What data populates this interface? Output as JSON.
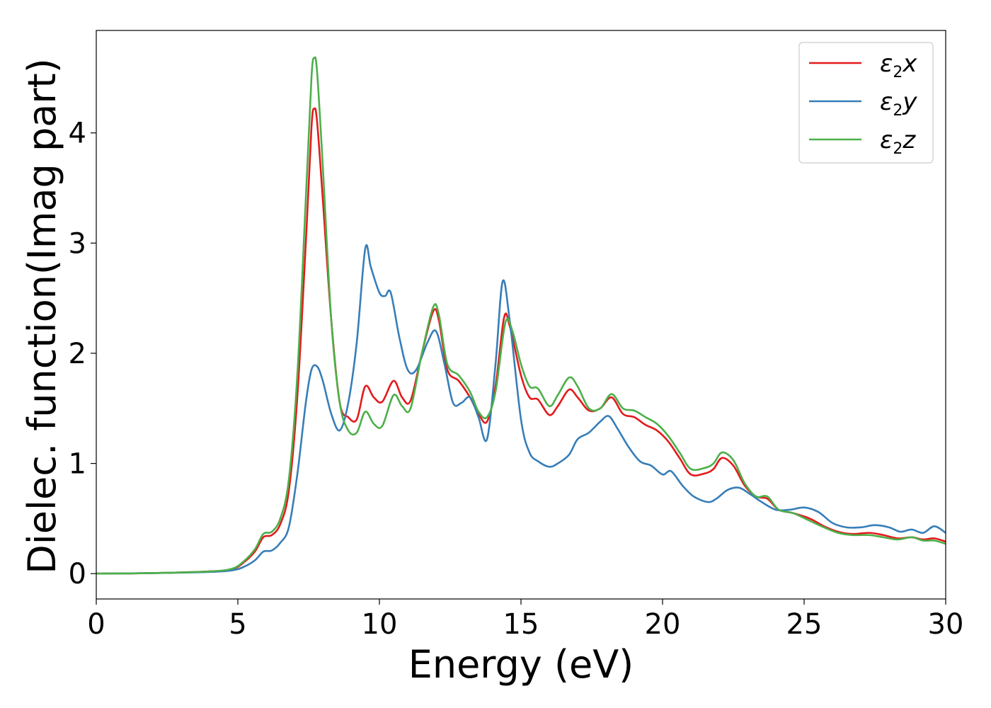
{
  "chart_data": {
    "type": "line",
    "xlabel": "Energy (eV)",
    "ylabel": "Dielec. function(Imag part)",
    "xlim": [
      0,
      30
    ],
    "ylim": [
      -0.23,
      4.93
    ],
    "xticks": [
      0,
      5,
      10,
      15,
      20,
      25,
      30
    ],
    "yticks": [
      0,
      1,
      2,
      3,
      4
    ],
    "grid": false,
    "legend_position": "top-right",
    "series": [
      {
        "name": "ε2x",
        "legend": {
          "symbol": "ε",
          "sub": "2",
          "var": "x"
        },
        "color": "#e41a1c",
        "points": [
          [
            0,
            0
          ],
          [
            2,
            0.005
          ],
          [
            4,
            0.02
          ],
          [
            4.8,
            0.04
          ],
          [
            5.2,
            0.1
          ],
          [
            5.6,
            0.2
          ],
          [
            5.9,
            0.33
          ],
          [
            6.2,
            0.35
          ],
          [
            6.5,
            0.45
          ],
          [
            6.8,
            0.75
          ],
          [
            7.1,
            1.6
          ],
          [
            7.4,
            3.0
          ],
          [
            7.6,
            4.05
          ],
          [
            7.7,
            4.22
          ],
          [
            7.8,
            4.1
          ],
          [
            8.0,
            3.4
          ],
          [
            8.3,
            2.3
          ],
          [
            8.6,
            1.55
          ],
          [
            8.9,
            1.42
          ],
          [
            9.2,
            1.4
          ],
          [
            9.5,
            1.7
          ],
          [
            9.8,
            1.6
          ],
          [
            10.1,
            1.56
          ],
          [
            10.5,
            1.75
          ],
          [
            10.8,
            1.6
          ],
          [
            11.1,
            1.57
          ],
          [
            11.5,
            2.0
          ],
          [
            11.9,
            2.38
          ],
          [
            12.1,
            2.3
          ],
          [
            12.4,
            1.85
          ],
          [
            12.8,
            1.75
          ],
          [
            13.2,
            1.6
          ],
          [
            13.5,
            1.45
          ],
          [
            13.8,
            1.38
          ],
          [
            14.1,
            1.7
          ],
          [
            14.4,
            2.32
          ],
          [
            14.6,
            2.25
          ],
          [
            15.0,
            1.8
          ],
          [
            15.3,
            1.6
          ],
          [
            15.6,
            1.58
          ],
          [
            16.0,
            1.44
          ],
          [
            16.3,
            1.52
          ],
          [
            16.7,
            1.67
          ],
          [
            17.0,
            1.6
          ],
          [
            17.4,
            1.48
          ],
          [
            17.8,
            1.5
          ],
          [
            18.2,
            1.6
          ],
          [
            18.6,
            1.45
          ],
          [
            19.0,
            1.42
          ],
          [
            19.4,
            1.35
          ],
          [
            19.8,
            1.3
          ],
          [
            20.2,
            1.2
          ],
          [
            20.6,
            1.05
          ],
          [
            21.0,
            0.9
          ],
          [
            21.5,
            0.91
          ],
          [
            21.8,
            0.95
          ],
          [
            22.1,
            1.05
          ],
          [
            22.5,
            0.98
          ],
          [
            22.9,
            0.8
          ],
          [
            23.3,
            0.7
          ],
          [
            23.7,
            0.68
          ],
          [
            24.1,
            0.58
          ],
          [
            24.6,
            0.55
          ],
          [
            25.2,
            0.5
          ],
          [
            25.7,
            0.43
          ],
          [
            26.2,
            0.38
          ],
          [
            26.7,
            0.36
          ],
          [
            27.3,
            0.37
          ],
          [
            27.8,
            0.35
          ],
          [
            28.3,
            0.32
          ],
          [
            28.8,
            0.33
          ],
          [
            29.2,
            0.31
          ],
          [
            29.6,
            0.32
          ],
          [
            30,
            0.29
          ]
        ]
      },
      {
        "name": "ε2y",
        "legend": {
          "symbol": "ε",
          "sub": "2",
          "var": "y"
        },
        "color": "#377eb8",
        "points": [
          [
            0,
            0
          ],
          [
            2,
            0.005
          ],
          [
            4,
            0.015
          ],
          [
            4.8,
            0.03
          ],
          [
            5.2,
            0.06
          ],
          [
            5.6,
            0.12
          ],
          [
            5.9,
            0.2
          ],
          [
            6.2,
            0.21
          ],
          [
            6.5,
            0.28
          ],
          [
            6.8,
            0.42
          ],
          [
            7.1,
            0.9
          ],
          [
            7.4,
            1.55
          ],
          [
            7.6,
            1.85
          ],
          [
            7.8,
            1.88
          ],
          [
            8.0,
            1.75
          ],
          [
            8.3,
            1.45
          ],
          [
            8.6,
            1.3
          ],
          [
            8.9,
            1.55
          ],
          [
            9.2,
            2.1
          ],
          [
            9.5,
            2.95
          ],
          [
            9.7,
            2.78
          ],
          [
            10.0,
            2.55
          ],
          [
            10.2,
            2.52
          ],
          [
            10.4,
            2.55
          ],
          [
            10.7,
            2.15
          ],
          [
            11.0,
            1.85
          ],
          [
            11.3,
            1.85
          ],
          [
            11.7,
            2.1
          ],
          [
            12.0,
            2.2
          ],
          [
            12.3,
            1.9
          ],
          [
            12.6,
            1.55
          ],
          [
            12.9,
            1.55
          ],
          [
            13.2,
            1.6
          ],
          [
            13.5,
            1.42
          ],
          [
            13.8,
            1.22
          ],
          [
            14.1,
            1.9
          ],
          [
            14.35,
            2.65
          ],
          [
            14.6,
            2.3
          ],
          [
            15.0,
            1.4
          ],
          [
            15.3,
            1.1
          ],
          [
            15.6,
            1.02
          ],
          [
            16.0,
            0.97
          ],
          [
            16.3,
            1.0
          ],
          [
            16.7,
            1.08
          ],
          [
            17.0,
            1.22
          ],
          [
            17.4,
            1.28
          ],
          [
            17.8,
            1.38
          ],
          [
            18.1,
            1.43
          ],
          [
            18.4,
            1.32
          ],
          [
            18.8,
            1.15
          ],
          [
            19.2,
            1.02
          ],
          [
            19.6,
            0.98
          ],
          [
            20.0,
            0.9
          ],
          [
            20.3,
            0.93
          ],
          [
            20.7,
            0.8
          ],
          [
            21.1,
            0.7
          ],
          [
            21.6,
            0.65
          ],
          [
            21.9,
            0.68
          ],
          [
            22.3,
            0.76
          ],
          [
            22.7,
            0.78
          ],
          [
            23.1,
            0.72
          ],
          [
            23.5,
            0.65
          ],
          [
            24.0,
            0.58
          ],
          [
            24.5,
            0.58
          ],
          [
            25.0,
            0.6
          ],
          [
            25.5,
            0.56
          ],
          [
            26.0,
            0.46
          ],
          [
            26.5,
            0.42
          ],
          [
            27.0,
            0.42
          ],
          [
            27.5,
            0.44
          ],
          [
            28.0,
            0.42
          ],
          [
            28.4,
            0.38
          ],
          [
            28.8,
            0.4
          ],
          [
            29.2,
            0.37
          ],
          [
            29.6,
            0.43
          ],
          [
            30,
            0.37
          ]
        ]
      },
      {
        "name": "ε2z",
        "legend": {
          "symbol": "ε",
          "sub": "2",
          "var": "z"
        },
        "color": "#4daf4a",
        "points": [
          [
            0,
            0
          ],
          [
            2,
            0.005
          ],
          [
            4,
            0.02
          ],
          [
            4.8,
            0.045
          ],
          [
            5.2,
            0.11
          ],
          [
            5.6,
            0.22
          ],
          [
            5.9,
            0.36
          ],
          [
            6.2,
            0.38
          ],
          [
            6.5,
            0.5
          ],
          [
            6.8,
            0.85
          ],
          [
            7.1,
            1.8
          ],
          [
            7.4,
            3.4
          ],
          [
            7.6,
            4.5
          ],
          [
            7.7,
            4.68
          ],
          [
            7.8,
            4.55
          ],
          [
            8.0,
            3.7
          ],
          [
            8.3,
            2.3
          ],
          [
            8.6,
            1.55
          ],
          [
            8.9,
            1.3
          ],
          [
            9.2,
            1.28
          ],
          [
            9.5,
            1.47
          ],
          [
            9.8,
            1.36
          ],
          [
            10.1,
            1.34
          ],
          [
            10.5,
            1.62
          ],
          [
            10.8,
            1.52
          ],
          [
            11.1,
            1.5
          ],
          [
            11.5,
            2.0
          ],
          [
            11.9,
            2.42
          ],
          [
            12.1,
            2.35
          ],
          [
            12.4,
            1.9
          ],
          [
            12.8,
            1.8
          ],
          [
            13.2,
            1.65
          ],
          [
            13.5,
            1.47
          ],
          [
            13.8,
            1.42
          ],
          [
            14.1,
            1.65
          ],
          [
            14.45,
            2.28
          ],
          [
            14.7,
            2.2
          ],
          [
            15.0,
            1.9
          ],
          [
            15.3,
            1.7
          ],
          [
            15.6,
            1.68
          ],
          [
            16.0,
            1.52
          ],
          [
            16.3,
            1.62
          ],
          [
            16.7,
            1.78
          ],
          [
            17.0,
            1.7
          ],
          [
            17.4,
            1.5
          ],
          [
            17.8,
            1.5
          ],
          [
            18.2,
            1.63
          ],
          [
            18.6,
            1.5
          ],
          [
            19.0,
            1.48
          ],
          [
            19.4,
            1.42
          ],
          [
            19.8,
            1.36
          ],
          [
            20.2,
            1.25
          ],
          [
            20.6,
            1.1
          ],
          [
            21.0,
            0.95
          ],
          [
            21.5,
            0.96
          ],
          [
            21.8,
            1.0
          ],
          [
            22.1,
            1.1
          ],
          [
            22.5,
            1.03
          ],
          [
            22.9,
            0.82
          ],
          [
            23.3,
            0.7
          ],
          [
            23.7,
            0.7
          ],
          [
            24.1,
            0.58
          ],
          [
            24.6,
            0.55
          ],
          [
            25.2,
            0.48
          ],
          [
            25.7,
            0.42
          ],
          [
            26.2,
            0.37
          ],
          [
            26.7,
            0.35
          ],
          [
            27.3,
            0.35
          ],
          [
            27.8,
            0.33
          ],
          [
            28.3,
            0.31
          ],
          [
            28.8,
            0.33
          ],
          [
            29.2,
            0.3
          ],
          [
            29.6,
            0.3
          ],
          [
            30,
            0.27
          ]
        ]
      }
    ]
  }
}
